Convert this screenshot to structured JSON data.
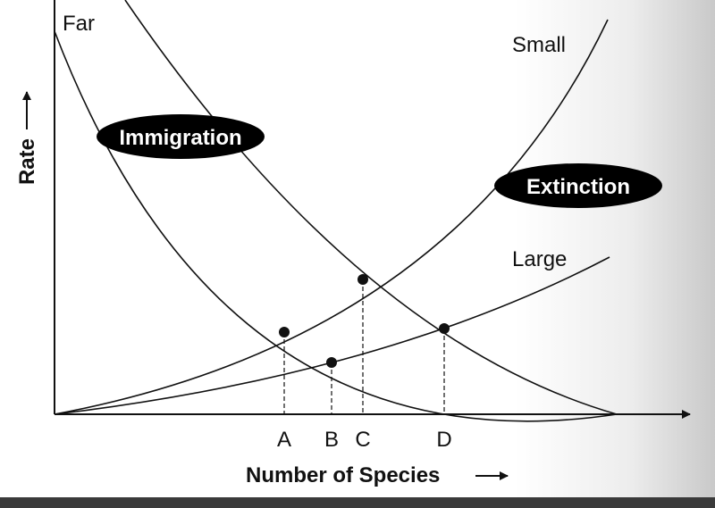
{
  "labels": {
    "far": "Far",
    "small": "Small",
    "large": "Large",
    "immigration": "Immigration",
    "extinction": "Extinction"
  },
  "axes": {
    "y_title": "Rate",
    "x_title": "Number of Species"
  },
  "points": {
    "a": "A",
    "b": "B",
    "c": "C",
    "d": "D"
  },
  "colors": {
    "ink": "#111111",
    "oval_fill": "#000000",
    "oval_text": "#ffffff"
  }
}
